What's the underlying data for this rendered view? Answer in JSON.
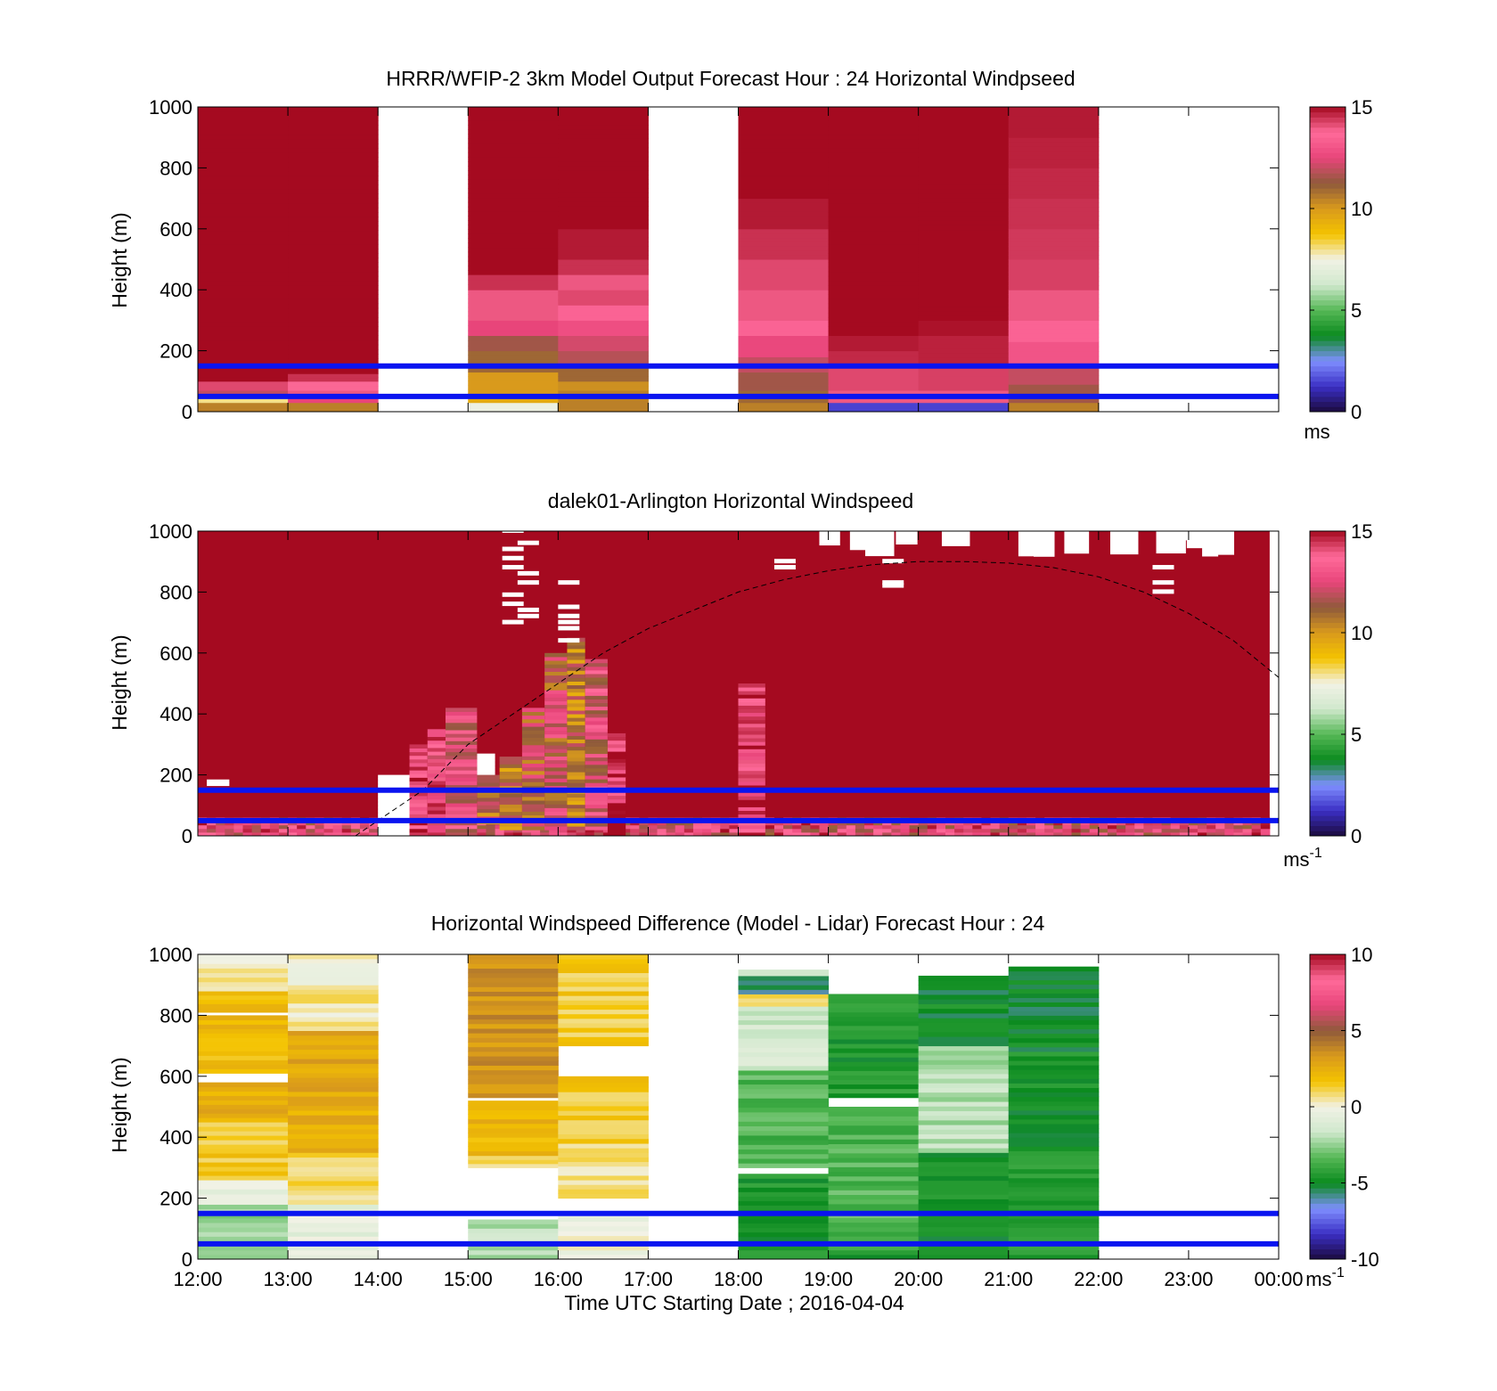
{
  "figure": {
    "xlabel": "Time UTC  Starting Date ; 2016-04-04",
    "x_ticks": [
      "12:00",
      "13:00",
      "14:00",
      "15:00",
      "16:00",
      "17:00",
      "18:00",
      "19:00",
      "20:00",
      "21:00",
      "22:00",
      "23:00",
      "00:00"
    ]
  },
  "chart_data": [
    {
      "type": "heatmap",
      "title": "HRRR/WFIP-2 3km Model Output   Forecast Hour : 24 Horizontal Windpseed",
      "ylabel": "Height (m)",
      "ylim": [
        0,
        1000
      ],
      "y_ticks": [
        "0",
        "200",
        "400",
        "600",
        "800",
        "1000"
      ],
      "xlim_hours_utc": [
        12,
        24
      ],
      "colorbar": {
        "range": [
          0,
          15
        ],
        "ticks": [
          "0",
          "5",
          "10",
          "15"
        ],
        "unit_label": "ms",
        "colors": [
          "#1b0a3e",
          "#3b2fc4",
          "#7f8fff",
          "#0a8a1e",
          "#55b855",
          "#cfe8cc",
          "#f2f2e6",
          "#f4c300",
          "#d99a1c",
          "#8f5a3b",
          "#e8457a",
          "#ff6b9a",
          "#a50a20"
        ]
      },
      "guide_lines_m": [
        50,
        150
      ],
      "columns": [
        {
          "start_hour": 12,
          "profile": [
            [
              0,
              30,
              10.5
            ],
            [
              30,
              45,
              8
            ],
            [
              45,
              70,
              12
            ],
            [
              70,
              100,
              14.2
            ],
            [
              100,
              160,
              15
            ],
            [
              160,
              1000,
              15
            ]
          ]
        },
        {
          "start_hour": 13,
          "profile": [
            [
              0,
              30,
              10.5
            ],
            [
              30,
              45,
              12.5
            ],
            [
              45,
              70,
              14
            ],
            [
              70,
              100,
              13.8
            ],
            [
              100,
              125,
              14.5
            ],
            [
              125,
              160,
              15
            ],
            [
              160,
              1000,
              15
            ]
          ]
        },
        {
          "start_hour": 15,
          "profile": [
            [
              0,
              30,
              7.3
            ],
            [
              30,
              60,
              9.5
            ],
            [
              60,
              130,
              10
            ],
            [
              130,
              200,
              11
            ],
            [
              200,
              250,
              11.5
            ],
            [
              250,
              300,
              12.5
            ],
            [
              300,
              400,
              14
            ],
            [
              400,
              450,
              14.5
            ],
            [
              450,
              1000,
              15
            ]
          ]
        },
        {
          "start_hour": 16,
          "profile": [
            [
              0,
              30,
              10.5
            ],
            [
              30,
              70,
              10.5
            ],
            [
              70,
              100,
              10.2
            ],
            [
              100,
              150,
              11
            ],
            [
              150,
              200,
              11.8
            ],
            [
              200,
              250,
              12.2
            ],
            [
              250,
              300,
              12.8
            ],
            [
              300,
              350,
              13.5
            ],
            [
              350,
              400,
              14.2
            ],
            [
              400,
              450,
              14
            ],
            [
              450,
              500,
              14.5
            ],
            [
              500,
              600,
              14.8
            ],
            [
              600,
              1000,
              15
            ]
          ]
        },
        {
          "start_hour": 18,
          "profile": [
            [
              0,
              30,
              10.5
            ],
            [
              30,
              70,
              11
            ],
            [
              70,
              130,
              11.5
            ],
            [
              130,
              180,
              12
            ],
            [
              180,
              250,
              12.6
            ],
            [
              250,
              300,
              13.5
            ],
            [
              300,
              400,
              14
            ],
            [
              400,
              500,
              14.2
            ],
            [
              500,
              600,
              14.5
            ],
            [
              600,
              700,
              14.8
            ],
            [
              700,
              1000,
              15
            ]
          ]
        },
        {
          "start_hour": 19,
          "profile": [
            [
              0,
              30,
              1.5
            ],
            [
              30,
              70,
              14
            ],
            [
              70,
              150,
              14.2
            ],
            [
              150,
              200,
              14.6
            ],
            [
              200,
              250,
              14.8
            ],
            [
              250,
              1000,
              15
            ]
          ]
        },
        {
          "start_hour": 20,
          "profile": [
            [
              0,
              30,
              1.5
            ],
            [
              30,
              70,
              14
            ],
            [
              70,
              150,
              14.3
            ],
            [
              150,
              250,
              14.7
            ],
            [
              250,
              300,
              14.9
            ],
            [
              300,
              1000,
              15
            ]
          ]
        },
        {
          "start_hour": 21,
          "profile": [
            [
              0,
              30,
              10.5
            ],
            [
              30,
              90,
              11.5
            ],
            [
              90,
              150,
              12
            ],
            [
              150,
              230,
              13
            ],
            [
              230,
              300,
              13.5
            ],
            [
              300,
              400,
              14
            ],
            [
              400,
              500,
              14.3
            ],
            [
              500,
              600,
              14.4
            ],
            [
              600,
              700,
              14.5
            ],
            [
              700,
              800,
              14.6
            ],
            [
              800,
              900,
              14.7
            ],
            [
              900,
              1000,
              14.8
            ]
          ]
        }
      ]
    },
    {
      "type": "heatmap",
      "title": "dalek01-Arlington  Horizontal Windspeed",
      "ylabel": "Height (m)",
      "ylim": [
        0,
        1000
      ],
      "y_ticks": [
        "0",
        "200",
        "400",
        "600",
        "800",
        "1000"
      ],
      "xlim_hours_utc": [
        12,
        24
      ],
      "colorbar": {
        "range": [
          0,
          15
        ],
        "ticks": [
          "0",
          "5",
          "10",
          "15"
        ],
        "unit_label": "ms-1",
        "colors": [
          "#1b0a3e",
          "#3b2fc4",
          "#7f8fff",
          "#0a8a1e",
          "#55b855",
          "#cfe8cc",
          "#f2f2e6",
          "#f4c300",
          "#d99a1c",
          "#8f5a3b",
          "#e8457a",
          "#ff6b9a",
          "#a50a20"
        ]
      },
      "guide_lines_m": [
        50,
        150
      ],
      "background_value": 15,
      "data_end_hour": 23.9,
      "note_dashed_curve": "dashed arc from about 13:45 at 0 m rising to about 900 m near 20:15 and descending to about 520 m at 24:00",
      "dashed_curve": [
        [
          13.75,
          0
        ],
        [
          14.5,
          150
        ],
        [
          15,
          300
        ],
        [
          15.5,
          400
        ],
        [
          16,
          500
        ],
        [
          16.5,
          600
        ],
        [
          17,
          680
        ],
        [
          17.5,
          740
        ],
        [
          18,
          800
        ],
        [
          18.5,
          840
        ],
        [
          19,
          870
        ],
        [
          19.5,
          890
        ],
        [
          20,
          900
        ],
        [
          20.5,
          900
        ],
        [
          21,
          895
        ],
        [
          21.5,
          880
        ],
        [
          22,
          850
        ],
        [
          22.5,
          800
        ],
        [
          23,
          730
        ],
        [
          23.5,
          640
        ],
        [
          24,
          520
        ]
      ],
      "features": [
        {
          "x0": 14.0,
          "x1": 14.5,
          "y0": 0,
          "y1": 200,
          "value": null
        },
        {
          "x0": 12.1,
          "x1": 12.35,
          "y0": 165,
          "y1": 185,
          "value": null
        },
        {
          "x0": 15.1,
          "x1": 15.3,
          "y0": 180,
          "y1": 270,
          "value": null
        },
        {
          "x0": 15.1,
          "x1": 15.35,
          "y0": 40,
          "y1": 200,
          "value": 11
        },
        {
          "x0": 15.35,
          "x1": 15.6,
          "y0": 20,
          "y1": 260,
          "value": 10.5
        },
        {
          "x0": 15.6,
          "x1": 15.85,
          "y0": 20,
          "y1": 420,
          "value": 11.5
        },
        {
          "x0": 15.85,
          "x1": 16.1,
          "y0": 20,
          "y1": 600,
          "value": 11.8
        },
        {
          "x0": 16.1,
          "x1": 16.3,
          "y0": 20,
          "y1": 650,
          "value": 10.8
        },
        {
          "x0": 16.3,
          "x1": 16.55,
          "y0": 20,
          "y1": 580,
          "value": 12.5
        },
        {
          "x0": 14.35,
          "x1": 14.55,
          "y0": 0,
          "y1": 300,
          "value": 14
        },
        {
          "x0": 14.55,
          "x1": 14.75,
          "y0": 0,
          "y1": 350,
          "value": 13.5
        },
        {
          "x0": 14.75,
          "x1": 15.1,
          "y0": 0,
          "y1": 420,
          "value": 12.8
        },
        {
          "x0": 16.55,
          "x1": 16.75,
          "y0": 0,
          "y1": 350,
          "value": 14.2
        },
        {
          "x0": 18.0,
          "x1": 18.3,
          "y0": 0,
          "y1": 500,
          "value": 14
        }
      ],
      "gaps_m": [
        {
          "hour": 15.38,
          "heights": [
            1000,
            940,
            910,
            880,
            790,
            760,
            700
          ]
        },
        {
          "hour": 15.55,
          "heights": [
            960,
            860,
            830,
            740,
            720
          ]
        },
        {
          "hour": 16.0,
          "heights": [
            830,
            750,
            720,
            700,
            680,
            640
          ]
        },
        {
          "hour": 18.4,
          "heights": [
            900,
            880
          ]
        },
        {
          "hour": 19.6,
          "heights": [
            900,
            830,
            820
          ]
        },
        {
          "hour": 22.6,
          "heights": [
            880,
            830,
            800
          ]
        }
      ]
    },
    {
      "type": "heatmap",
      "title": "Horizontal Windspeed Difference (Model - Lidar) Forecast Hour : 24",
      "ylabel": "Height (m)",
      "ylim": [
        0,
        1000
      ],
      "y_ticks": [
        "0",
        "200",
        "400",
        "600",
        "800",
        "1000"
      ],
      "xlim_hours_utc": [
        12,
        24
      ],
      "colorbar": {
        "range": [
          -10,
          10
        ],
        "ticks": [
          "-10",
          "-5",
          "0",
          "5",
          "10"
        ],
        "unit_label": "ms-1",
        "colors": [
          "#1b0a3e",
          "#3b2fc4",
          "#7f8fff",
          "#0a8a1e",
          "#55b855",
          "#cfe8cc",
          "#f2f2e6",
          "#f4c300",
          "#d99a1c",
          "#8f5a3b",
          "#e8457a",
          "#ff6b9a",
          "#a50a20"
        ]
      },
      "guide_lines_m": [
        50,
        150
      ],
      "columns": [
        {
          "start_hour": 12,
          "top_m": 980,
          "profile": [
            [
              0,
              30,
              -3
            ],
            [
              30,
              180,
              -2.5
            ],
            [
              180,
              230,
              -0.5
            ],
            [
              230,
              260,
              0.5
            ],
            [
              260,
              450,
              1.5
            ],
            [
              450,
              580,
              2.5
            ],
            [
              580,
              610,
              null
            ],
            [
              610,
              800,
              2
            ],
            [
              800,
              810,
              null
            ],
            [
              810,
              880,
              1.8
            ],
            [
              880,
              1000,
              0.4
            ]
          ]
        },
        {
          "start_hour": 13,
          "top_m": 1000,
          "profile": [
            [
              0,
              30,
              -0.5
            ],
            [
              30,
              180,
              -0.5
            ],
            [
              180,
              350,
              0.8
            ],
            [
              350,
              550,
              2.5
            ],
            [
              550,
              750,
              2.8
            ],
            [
              750,
              900,
              0.5
            ],
            [
              900,
              1000,
              0.2
            ]
          ]
        },
        {
          "start_hour": 15,
          "top_m": 1000,
          "profile": [
            [
              0,
              30,
              -2
            ],
            [
              30,
              130,
              -1.8
            ],
            [
              130,
              300,
              null
            ],
            [
              300,
              340,
              0.6
            ],
            [
              340,
              520,
              2.2
            ],
            [
              520,
              530,
              null
            ],
            [
              530,
              1000,
              3.5
            ]
          ]
        },
        {
          "start_hour": 16,
          "top_m": 1000,
          "profile": [
            [
              0,
              30,
              -0.3
            ],
            [
              30,
              140,
              0
            ],
            [
              140,
              200,
              null
            ],
            [
              200,
              380,
              0.6
            ],
            [
              380,
              580,
              1.5
            ],
            [
              580,
              600,
              2.5
            ],
            [
              600,
              700,
              null
            ],
            [
              700,
              1000,
              1.4
            ]
          ]
        },
        {
          "start_hour": 18,
          "top_m": 950,
          "profile": [
            [
              0,
              30,
              -4
            ],
            [
              30,
              280,
              -4.5
            ],
            [
              280,
              300,
              null
            ],
            [
              300,
              620,
              -3.5
            ],
            [
              620,
              830,
              -1.5
            ],
            [
              830,
              870,
              1
            ],
            [
              870,
              930,
              -5.5
            ],
            [
              930,
              950,
              -1.5
            ]
          ]
        },
        {
          "start_hour": 19,
          "top_m": 870,
          "profile": [
            [
              0,
              30,
              -4.5
            ],
            [
              30,
              500,
              -3.5
            ],
            [
              500,
              530,
              null
            ],
            [
              530,
              870,
              -4.5
            ]
          ]
        },
        {
          "start_hour": 20,
          "top_m": 930,
          "profile": [
            [
              0,
              30,
              -4.5
            ],
            [
              30,
              350,
              -4.8
            ],
            [
              350,
              700,
              -2
            ],
            [
              700,
              930,
              -5
            ]
          ]
        },
        {
          "start_hour": 21,
          "top_m": 960,
          "profile": [
            [
              0,
              30,
              -4.5
            ],
            [
              30,
              400,
              -4.5
            ],
            [
              400,
              800,
              -4.8
            ],
            [
              800,
              960,
              -5.2
            ]
          ]
        }
      ]
    }
  ]
}
